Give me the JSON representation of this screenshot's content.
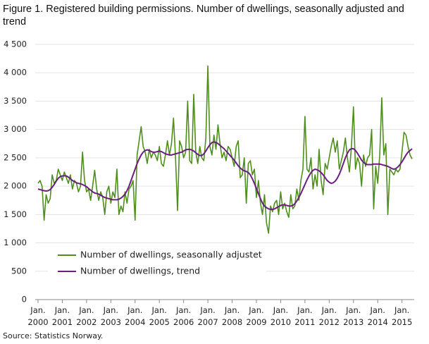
{
  "chart_data": {
    "type": "line",
    "title": "Figure 1. Registered building permissions. Number of dwellings, seasonally adjusted and trend",
    "source": "Source: Statistics Norway.",
    "categories": [
      "Jan. 2000",
      null,
      null,
      null,
      null,
      null,
      null,
      null,
      null,
      null,
      null,
      null,
      "Jan. 2001",
      null,
      null,
      null,
      null,
      null,
      null,
      null,
      null,
      null,
      null,
      null,
      "Jan. 2002",
      null,
      null,
      null,
      null,
      null,
      null,
      null,
      null,
      null,
      null,
      null,
      "Jan. 2003",
      null,
      null,
      null,
      null,
      null,
      null,
      null,
      null,
      null,
      null,
      null,
      "Jan. 2004",
      null,
      null,
      null,
      null,
      null,
      null,
      null,
      null,
      null,
      null,
      null,
      "Jan. 2005",
      null,
      null,
      null,
      null,
      null,
      null,
      null,
      null,
      null,
      null,
      null,
      "Jan. 2006",
      null,
      null,
      null,
      null,
      null,
      null,
      null,
      null,
      null,
      null,
      null,
      "Jan. 2007",
      null,
      null,
      null,
      null,
      null,
      null,
      null,
      null,
      null,
      null,
      null,
      "Jan. 2008",
      null,
      null,
      null,
      null,
      null,
      null,
      null,
      null,
      null,
      null,
      null,
      "Jan. 2009",
      null,
      null,
      null,
      null,
      null,
      null,
      null,
      null,
      null,
      null,
      null,
      "Jan. 2010",
      null,
      null,
      null,
      null,
      null,
      null,
      null,
      null,
      null,
      null,
      null,
      "Jan. 2011",
      null,
      null,
      null,
      null,
      null,
      null,
      null,
      null,
      null,
      null,
      null,
      "Jan. 2012",
      null,
      null,
      null,
      null,
      null,
      null,
      null,
      null,
      null,
      null,
      null,
      "Jan. 2013",
      null,
      null,
      null,
      null,
      null,
      null,
      null,
      null,
      null,
      null,
      null,
      "Jan. 2014",
      null,
      null,
      null,
      null,
      null,
      null,
      null,
      null,
      null,
      null,
      null,
      "Jan. 2015",
      null,
      null,
      null,
      null,
      null
    ],
    "series": [
      {
        "name": "Number of dwellings, seasonally adjustet",
        "color": "#4e8f1c",
        "values": [
          2050,
          2100,
          2000,
          1400,
          1850,
          1700,
          1780,
          2200,
          2050,
          2100,
          2300,
          2200,
          2100,
          2250,
          2150,
          2050,
          2200,
          1950,
          2100,
          2050,
          1900,
          2000,
          2600,
          2100,
          1900,
          1950,
          1750,
          2000,
          2280,
          1950,
          1750,
          1900,
          1800,
          1500,
          1900,
          2000,
          1700,
          1900,
          1800,
          2300,
          1500,
          1650,
          1550,
          1900,
          1700,
          1950,
          2000,
          2100,
          1400,
          2550,
          2800,
          3050,
          2700,
          2600,
          2400,
          2650,
          2500,
          2600,
          2550,
          2450,
          2700,
          2400,
          2350,
          2550,
          2800,
          2550,
          2750,
          3200,
          2500,
          1570,
          2800,
          2700,
          2500,
          2600,
          3500,
          2450,
          2400,
          3620,
          2600,
          2400,
          2700,
          2500,
          2450,
          2850,
          4120,
          2700,
          2550,
          2900,
          2650,
          3080,
          2750,
          2500,
          2600,
          2450,
          2700,
          2650,
          2500,
          2350,
          2700,
          2800,
          2150,
          2200,
          2500,
          1700,
          2400,
          2450,
          2200,
          2300,
          1800,
          2100,
          1700,
          1500,
          1850,
          1350,
          1170,
          1650,
          1550,
          1700,
          1750,
          1500,
          1900,
          1600,
          1700,
          1550,
          1450,
          1850,
          1600,
          1650,
          1950,
          1750,
          2100,
          2300,
          3230,
          2300,
          2250,
          2500,
          1950,
          2200,
          2000,
          2650,
          2100,
          1850,
          2400,
          2300,
          2500,
          2700,
          2850,
          2600,
          2800,
          2300,
          2450,
          2600,
          2850,
          2500,
          2250,
          2700,
          3400,
          2300,
          2500,
          2400,
          2000,
          2550,
          2350,
          2500,
          2550,
          3000,
          1600,
          2350,
          2050,
          2550,
          3560,
          2550,
          2750,
          1500,
          2300,
          2250,
          2200,
          2300,
          2250,
          2300,
          2600,
          2950,
          2900,
          2700,
          2550,
          2480
        ]
      },
      {
        "name": "Number of dwellings, trend",
        "color": "#6b1d80",
        "values": [
          1950,
          1940,
          1930,
          1920,
          1915,
          1920,
          1940,
          1980,
          2030,
          2090,
          2140,
          2170,
          2180,
          2185,
          2180,
          2160,
          2130,
          2100,
          2080,
          2060,
          2050,
          2040,
          2030,
          2010,
          1990,
          1960,
          1930,
          1900,
          1880,
          1870,
          1860,
          1840,
          1820,
          1800,
          1790,
          1780,
          1770,
          1760,
          1760,
          1760,
          1770,
          1790,
          1820,
          1860,
          1920,
          2000,
          2100,
          2200,
          2300,
          2400,
          2480,
          2550,
          2600,
          2630,
          2640,
          2630,
          2610,
          2600,
          2600,
          2610,
          2620,
          2610,
          2590,
          2570,
          2560,
          2550,
          2550,
          2560,
          2570,
          2580,
          2590,
          2600,
          2620,
          2640,
          2650,
          2650,
          2640,
          2620,
          2590,
          2560,
          2540,
          2540,
          2570,
          2620,
          2680,
          2730,
          2770,
          2780,
          2770,
          2750,
          2720,
          2690,
          2660,
          2620,
          2580,
          2540,
          2500,
          2460,
          2410,
          2360,
          2320,
          2290,
          2270,
          2260,
          2240,
          2200,
          2130,
          2050,
          1960,
          1870,
          1780,
          1700,
          1650,
          1620,
          1600,
          1590,
          1590,
          1600,
          1620,
          1640,
          1660,
          1670,
          1670,
          1660,
          1650,
          1650,
          1660,
          1690,
          1740,
          1800,
          1870,
          1950,
          2030,
          2110,
          2180,
          2240,
          2280,
          2300,
          2290,
          2270,
          2240,
          2200,
          2150,
          2100,
          2070,
          2050,
          2060,
          2090,
          2140,
          2210,
          2300,
          2400,
          2500,
          2580,
          2640,
          2660,
          2660,
          2630,
          2580,
          2520,
          2460,
          2420,
          2390,
          2380,
          2380,
          2380,
          2390,
          2390,
          2390,
          2390,
          2380,
          2370,
          2360,
          2350,
          2330,
          2310,
          2300,
          2310,
          2340,
          2380,
          2430,
          2490,
          2550,
          2600,
          2630,
          2660
        ]
      }
    ],
    "ylim": [
      0,
      4500
    ],
    "yticks": [
      0,
      500,
      {
        "value": 1000,
        "label": "1 000"
      },
      {
        "value": 1500,
        "label": "1 500"
      },
      {
        "value": 2000,
        "label": "2 000"
      },
      {
        "value": 2500,
        "label": "2 500"
      },
      {
        "value": 3000,
        "label": "3 000"
      },
      {
        "value": 3500,
        "label": "3 500"
      },
      {
        "value": 4000,
        "label": "4 000"
      },
      {
        "value": 4500,
        "label": "4 500"
      }
    ],
    "grid": true,
    "legend": "lower left"
  }
}
